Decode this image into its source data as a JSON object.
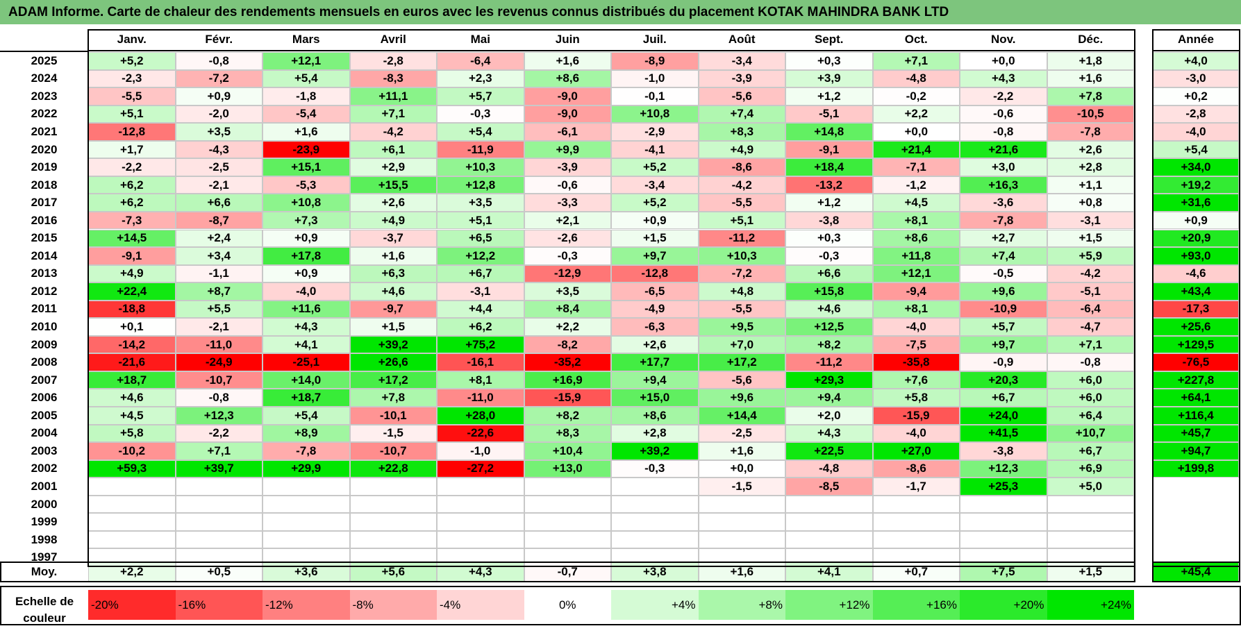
{
  "title": "ADAM Informe. Carte de chaleur des rendements mensuels en euros avec les revenus connus distribués du placement KOTAK MAHINDRA BANK LTD",
  "chart_data": {
    "type": "heatmap",
    "title": "ADAM Informe. Carte de chaleur des rendements mensuels en euros avec les revenus connus distribués du placement KOTAK MAHINDRA BANK LTD",
    "columns": [
      "Janv.",
      "Févr.",
      "Mars",
      "Avril",
      "Mai",
      "Juin",
      "Juil.",
      "Août",
      "Sept.",
      "Oct.",
      "Nov.",
      "Déc."
    ],
    "annual_header": "Année",
    "avg_label": "Moy.",
    "rows": [
      {
        "year": "2025",
        "values": [
          "+5,2",
          "-0,8",
          "+12,1",
          "-2,8",
          "-6,4",
          "+1,6",
          "-8,9",
          "-3,4",
          "+0,3",
          "+7,1",
          "+0,0",
          "+1,8"
        ],
        "annual": "+4,0"
      },
      {
        "year": "2024",
        "values": [
          "-2,3",
          "-7,2",
          "+5,4",
          "-8,3",
          "+2,3",
          "+8,6",
          "-1,0",
          "-3,9",
          "+3,9",
          "-4,8",
          "+4,3",
          "+1,6"
        ],
        "annual": "-3,0"
      },
      {
        "year": "2023",
        "values": [
          "-5,5",
          "+0,9",
          "-1,8",
          "+11,1",
          "+5,7",
          "-9,0",
          "-0,1",
          "-5,6",
          "+1,2",
          "-0,2",
          "-2,2",
          "+7,8"
        ],
        "annual": "+0,2"
      },
      {
        "year": "2022",
        "values": [
          "+5,1",
          "-2,0",
          "-5,4",
          "+7,1",
          "-0,3",
          "-9,0",
          "+10,8",
          "+7,4",
          "-5,1",
          "+2,2",
          "-0,6",
          "-10,5"
        ],
        "annual": "-2,8"
      },
      {
        "year": "2021",
        "values": [
          "-12,8",
          "+3,5",
          "+1,6",
          "-4,2",
          "+5,4",
          "-6,1",
          "-2,9",
          "+8,3",
          "+14,8",
          "+0,0",
          "-0,8",
          "-7,8"
        ],
        "annual": "-4,0"
      },
      {
        "year": "2020",
        "values": [
          "+1,7",
          "-4,3",
          "-23,9",
          "+6,1",
          "-11,9",
          "+9,9",
          "-4,1",
          "+4,9",
          "-9,1",
          "+21,4",
          "+21,6",
          "+2,6"
        ],
        "annual": "+5,4"
      },
      {
        "year": "2019",
        "values": [
          "-2,2",
          "-2,5",
          "+15,1",
          "+2,9",
          "+10,3",
          "-3,9",
          "+5,2",
          "-8,6",
          "+18,4",
          "-7,1",
          "+3,0",
          "+2,8"
        ],
        "annual": "+34,0"
      },
      {
        "year": "2018",
        "values": [
          "+6,2",
          "-2,1",
          "-5,3",
          "+15,5",
          "+12,8",
          "-0,6",
          "-3,4",
          "-4,2",
          "-13,2",
          "-1,2",
          "+16,3",
          "+1,1"
        ],
        "annual": "+19,2"
      },
      {
        "year": "2017",
        "values": [
          "+6,2",
          "+6,6",
          "+10,8",
          "+2,6",
          "+3,5",
          "-3,3",
          "+5,2",
          "-5,5",
          "+1,2",
          "+4,5",
          "-3,6",
          "+0,8"
        ],
        "annual": "+31,6"
      },
      {
        "year": "2016",
        "values": [
          "-7,3",
          "-8,7",
          "+7,3",
          "+4,9",
          "+5,1",
          "+2,1",
          "+0,9",
          "+5,1",
          "-3,8",
          "+8,1",
          "-7,8",
          "-3,1"
        ],
        "annual": "+0,9"
      },
      {
        "year": "2015",
        "values": [
          "+14,5",
          "+2,4",
          "+0,9",
          "-3,7",
          "+6,5",
          "-2,6",
          "+1,5",
          "-11,2",
          "+0,3",
          "+8,6",
          "+2,7",
          "+1,5"
        ],
        "annual": "+20,9"
      },
      {
        "year": "2014",
        "values": [
          "-9,1",
          "+3,4",
          "+17,8",
          "+1,6",
          "+12,2",
          "-0,3",
          "+9,7",
          "+10,3",
          "-0,3",
          "+11,8",
          "+7,4",
          "+5,9"
        ],
        "annual": "+93,0"
      },
      {
        "year": "2013",
        "values": [
          "+4,9",
          "-1,1",
          "+0,9",
          "+6,3",
          "+6,7",
          "-12,9",
          "-12,8",
          "-7,2",
          "+6,6",
          "+12,1",
          "-0,5",
          "-4,2"
        ],
        "annual": "-4,6"
      },
      {
        "year": "2012",
        "values": [
          "+22,4",
          "+8,7",
          "-4,0",
          "+4,6",
          "-3,1",
          "+3,5",
          "-6,5",
          "+4,8",
          "+15,8",
          "-9,4",
          "+9,6",
          "-5,1"
        ],
        "annual": "+43,4"
      },
      {
        "year": "2011",
        "values": [
          "-18,8",
          "+5,5",
          "+11,6",
          "-9,7",
          "+4,4",
          "+8,4",
          "-4,9",
          "-5,5",
          "+4,6",
          "+8,1",
          "-10,9",
          "-6,4"
        ],
        "annual": "-17,3"
      },
      {
        "year": "2010",
        "values": [
          "+0,1",
          "-2,1",
          "+4,3",
          "+1,5",
          "+6,2",
          "+2,2",
          "-6,3",
          "+9,5",
          "+12,5",
          "-4,0",
          "+5,7",
          "-4,7"
        ],
        "annual": "+25,6"
      },
      {
        "year": "2009",
        "values": [
          "-14,2",
          "-11,0",
          "+4,1",
          "+39,2",
          "+75,2",
          "-8,2",
          "+2,6",
          "+7,0",
          "+8,2",
          "-7,5",
          "+9,7",
          "+7,1"
        ],
        "annual": "+129,5"
      },
      {
        "year": "2008",
        "values": [
          "-21,6",
          "-24,9",
          "-25,1",
          "+26,6",
          "-16,1",
          "-35,2",
          "+17,7",
          "+17,2",
          "-11,2",
          "-35,8",
          "-0,9",
          "-0,8"
        ],
        "annual": "-76,5"
      },
      {
        "year": "2007",
        "values": [
          "+18,7",
          "-10,7",
          "+14,0",
          "+17,2",
          "+8,1",
          "+16,9",
          "+9,4",
          "-5,6",
          "+29,3",
          "+7,6",
          "+20,3",
          "+6,0"
        ],
        "annual": "+227,8"
      },
      {
        "year": "2006",
        "values": [
          "+4,6",
          "-0,8",
          "+18,7",
          "+7,8",
          "-11,0",
          "-15,9",
          "+15,0",
          "+9,6",
          "+9,4",
          "+5,8",
          "+6,7",
          "+6,0"
        ],
        "annual": "+64,1"
      },
      {
        "year": "2005",
        "values": [
          "+4,5",
          "+12,3",
          "+5,4",
          "-10,1",
          "+28,0",
          "+8,2",
          "+8,6",
          "+14,4",
          "+2,0",
          "-15,9",
          "+24,0",
          "+6,4"
        ],
        "annual": "+116,4"
      },
      {
        "year": "2004",
        "values": [
          "+5,8",
          "-2,2",
          "+8,9",
          "-1,5",
          "-22,6",
          "+8,3",
          "+2,8",
          "-2,5",
          "+4,3",
          "-4,0",
          "+41,5",
          "+10,7"
        ],
        "annual": "+45,7"
      },
      {
        "year": "2003",
        "values": [
          "-10,2",
          "+7,1",
          "-7,8",
          "-10,7",
          "-1,0",
          "+10,4",
          "+39,2",
          "+1,6",
          "+22,5",
          "+27,0",
          "-3,8",
          "+6,7"
        ],
        "annual": "+94,7"
      },
      {
        "year": "2002",
        "values": [
          "+59,3",
          "+39,7",
          "+29,9",
          "+22,8",
          "-27,2",
          "+13,0",
          "-0,3",
          "+0,0",
          "-4,8",
          "-8,6",
          "+12,3",
          "+6,9"
        ],
        "annual": "+199,8"
      },
      {
        "year": "2001",
        "values": [
          "",
          "",
          "",
          "",
          "",
          "",
          "",
          "-1,5",
          "-8,5",
          "-1,7",
          "+25,3",
          "+5,0"
        ],
        "annual": ""
      },
      {
        "year": "2000",
        "values": [
          "",
          "",
          "",
          "",
          "",
          "",
          "",
          "",
          "",
          "",
          "",
          ""
        ],
        "annual": ""
      },
      {
        "year": "1999",
        "values": [
          "",
          "",
          "",
          "",
          "",
          "",
          "",
          "",
          "",
          "",
          "",
          ""
        ],
        "annual": ""
      },
      {
        "year": "1998",
        "values": [
          "",
          "",
          "",
          "",
          "",
          "",
          "",
          "",
          "",
          "",
          "",
          ""
        ],
        "annual": ""
      },
      {
        "year": "1997",
        "values": [
          "",
          "",
          "",
          "",
          "",
          "",
          "",
          "",
          "",
          "",
          "",
          ""
        ],
        "annual": ""
      }
    ],
    "average": {
      "values": [
        "+2,2",
        "+0,5",
        "+3,6",
        "+5,6",
        "+4,3",
        "-0,7",
        "+3,8",
        "+1,6",
        "+4,1",
        "+0,7",
        "+7,5",
        "+1,5"
      ],
      "annual": "+45,4"
    },
    "legend": {
      "label": "Echelle de couleur",
      "stops": [
        "-20%",
        "-16%",
        "-12%",
        "-8%",
        "-4%",
        "0%",
        "+4%",
        "+8%",
        "+12%",
        "+16%",
        "+20%",
        "+24%"
      ]
    },
    "colors": {
      "negative_max": "#ff0000",
      "neutral": "#ffffff",
      "positive_max": "#00e600",
      "title_bar": "#7dc57d"
    }
  }
}
